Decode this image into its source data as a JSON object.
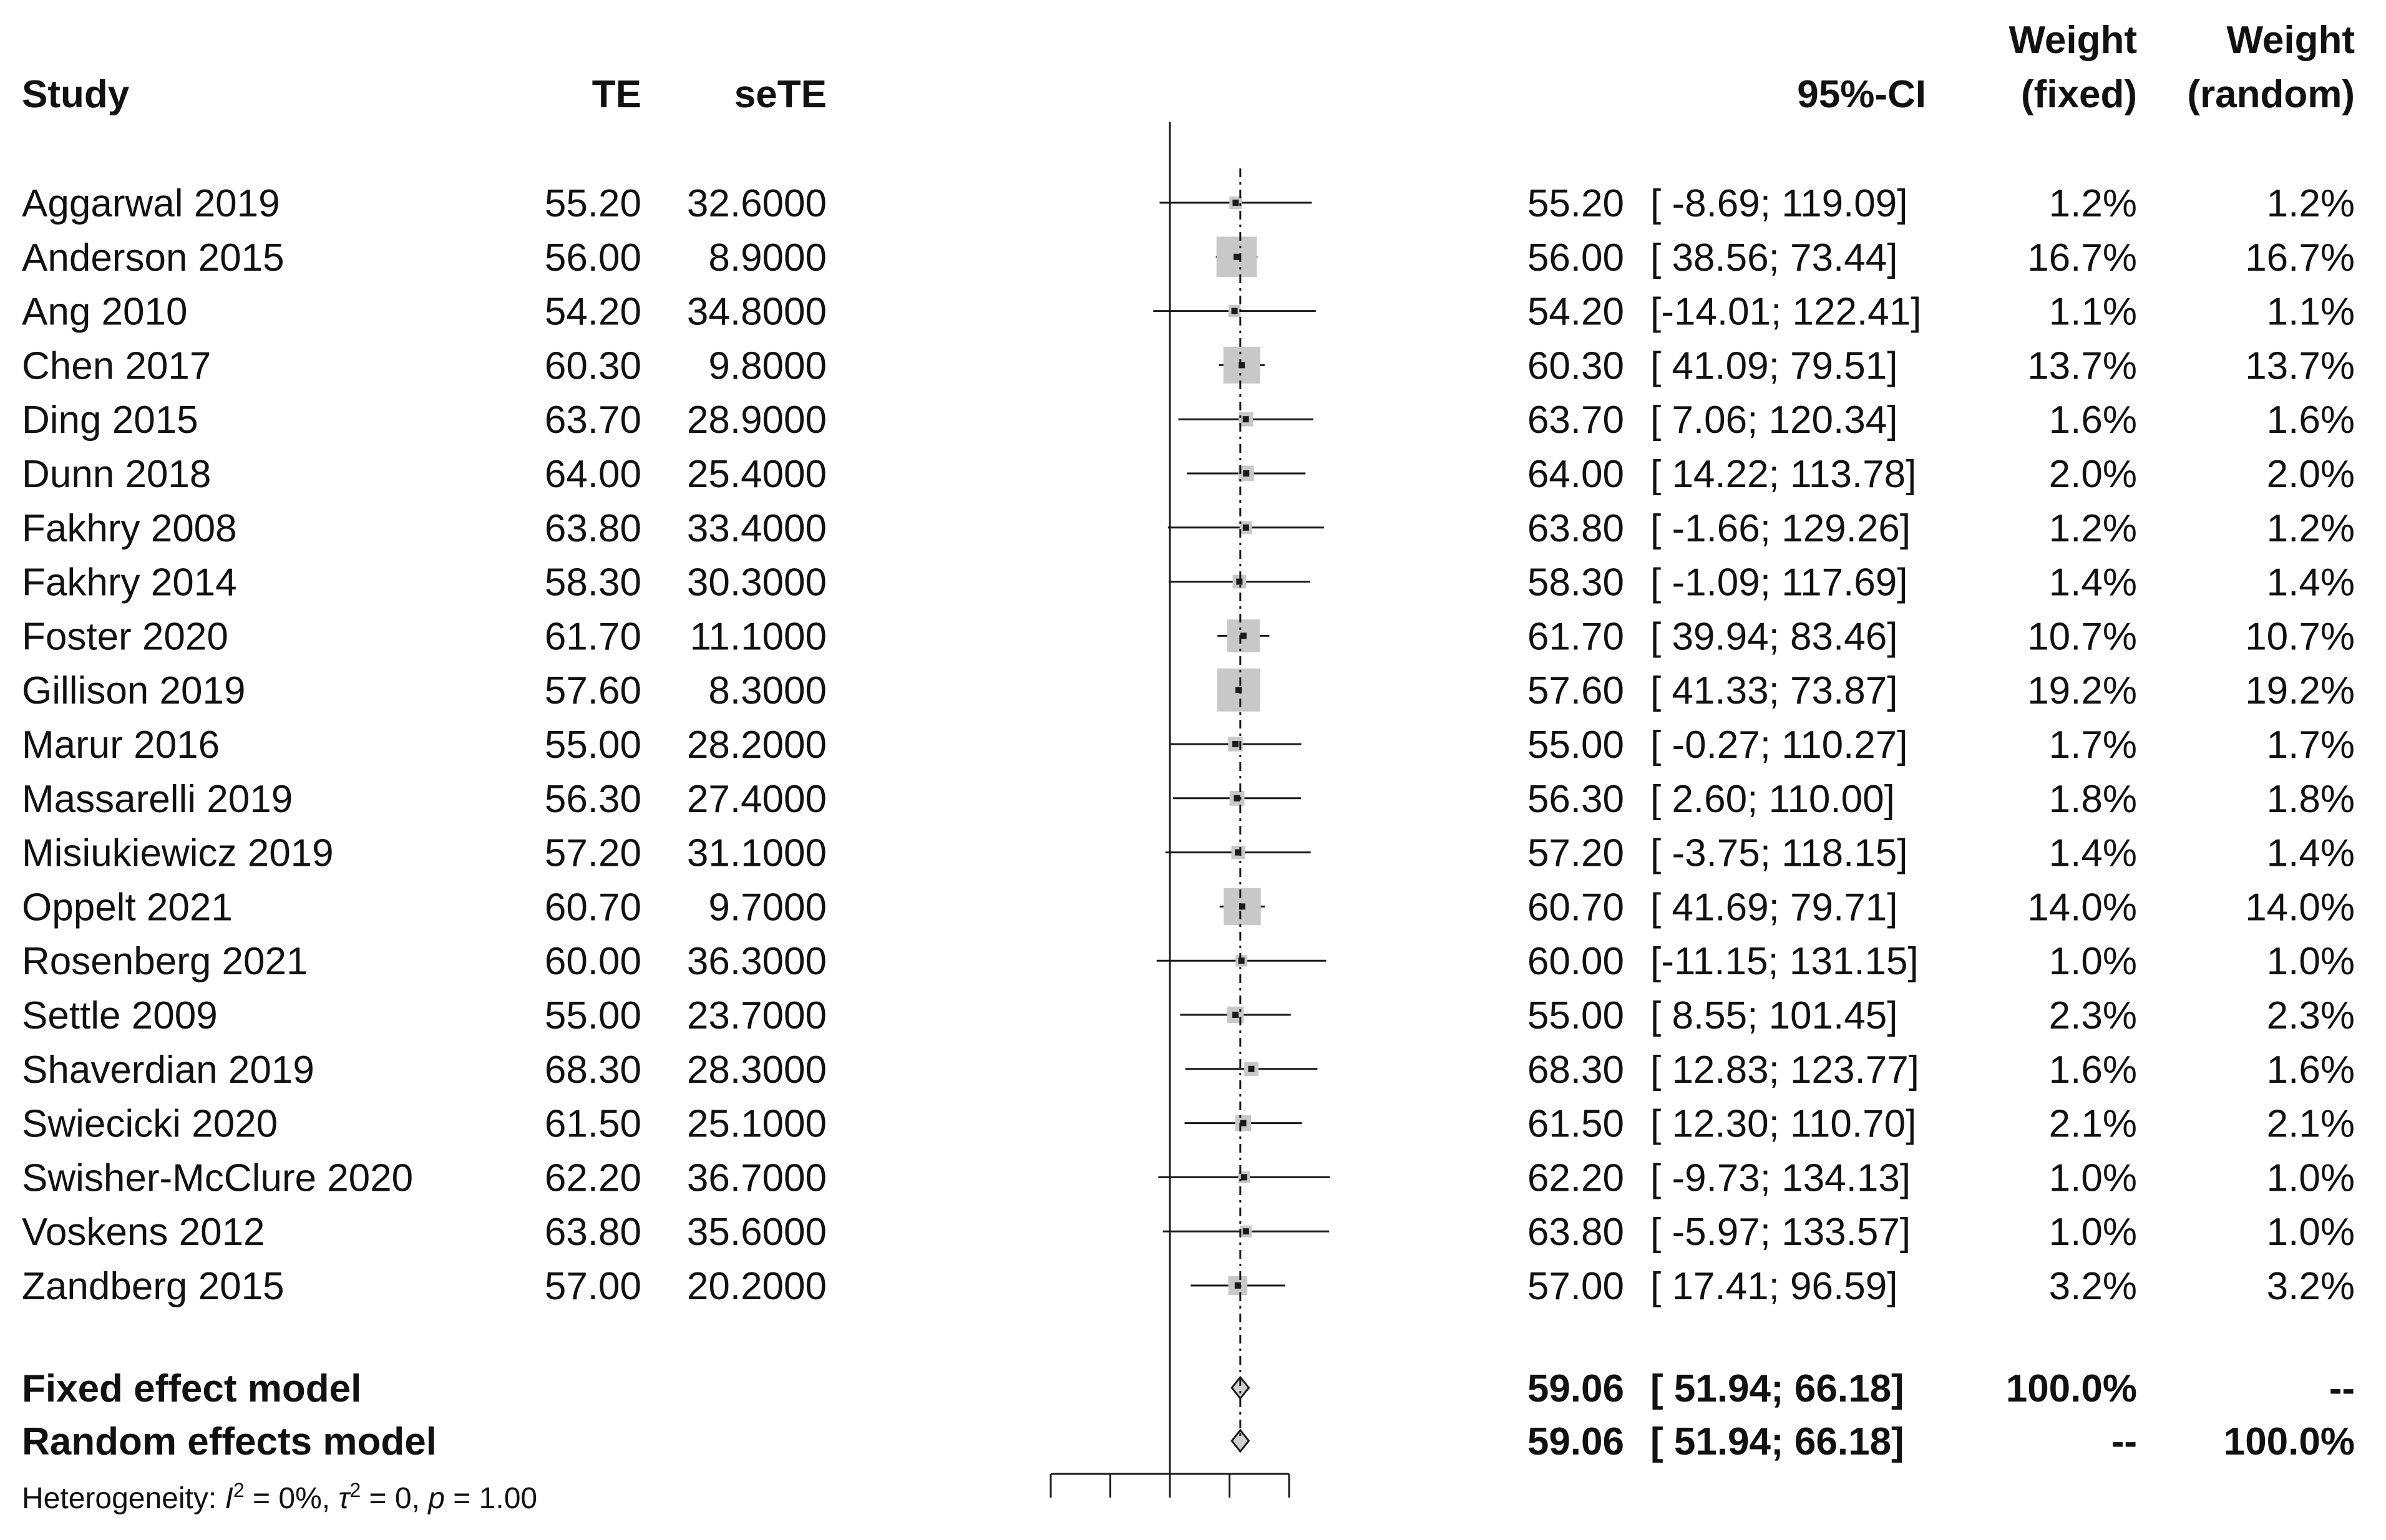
{
  "chart_data": {
    "type": "forest",
    "headers": {
      "study": "Study",
      "te": "TE",
      "sete": "seTE",
      "ci": "95%-CI",
      "weight_fixed": [
        "Weight",
        "(fixed)"
      ],
      "weight_random": [
        "Weight",
        "(random)"
      ]
    },
    "null_value": 0,
    "axis": {
      "xlim": [
        -100,
        100
      ],
      "ticks": [
        -100,
        -50,
        0,
        50,
        100
      ],
      "tick_labels_shown": false
    },
    "studies": [
      {
        "study": "Aggarwal 2019",
        "te": "55.20",
        "sete": "32.6000",
        "est": "55.20",
        "ci": "[ -8.69; 119.09]",
        "lower": -8.69,
        "upper": 119.09,
        "w_fixed": "1.2%",
        "w_random": "1.2%",
        "weight": 1.2
      },
      {
        "study": "Anderson 2015",
        "te": "56.00",
        "sete": "8.9000",
        "est": "56.00",
        "ci": "[ 38.56; 73.44]",
        "lower": 38.56,
        "upper": 73.44,
        "w_fixed": "16.7%",
        "w_random": "16.7%",
        "weight": 16.7
      },
      {
        "study": "Ang 2010",
        "te": "54.20",
        "sete": "34.8000",
        "est": "54.20",
        "ci": "[-14.01; 122.41]",
        "lower": -14.01,
        "upper": 122.41,
        "w_fixed": "1.1%",
        "w_random": "1.1%",
        "weight": 1.1
      },
      {
        "study": "Chen 2017",
        "te": "60.30",
        "sete": "9.8000",
        "est": "60.30",
        "ci": "[ 41.09; 79.51]",
        "lower": 41.09,
        "upper": 79.51,
        "w_fixed": "13.7%",
        "w_random": "13.7%",
        "weight": 13.7
      },
      {
        "study": "Ding 2015",
        "te": "63.70",
        "sete": "28.9000",
        "est": "63.70",
        "ci": "[ 7.06; 120.34]",
        "lower": 7.06,
        "upper": 120.34,
        "w_fixed": "1.6%",
        "w_random": "1.6%",
        "weight": 1.6
      },
      {
        "study": "Dunn 2018",
        "te": "64.00",
        "sete": "25.4000",
        "est": "64.00",
        "ci": "[ 14.22; 113.78]",
        "lower": 14.22,
        "upper": 113.78,
        "w_fixed": "2.0%",
        "w_random": "2.0%",
        "weight": 2.0
      },
      {
        "study": "Fakhry 2008",
        "te": "63.80",
        "sete": "33.4000",
        "est": "63.80",
        "ci": "[ -1.66; 129.26]",
        "lower": -1.66,
        "upper": 129.26,
        "w_fixed": "1.2%",
        "w_random": "1.2%",
        "weight": 1.2
      },
      {
        "study": "Fakhry 2014",
        "te": "58.30",
        "sete": "30.3000",
        "est": "58.30",
        "ci": "[ -1.09; 117.69]",
        "lower": -1.09,
        "upper": 117.69,
        "w_fixed": "1.4%",
        "w_random": "1.4%",
        "weight": 1.4
      },
      {
        "study": "Foster 2020",
        "te": "61.70",
        "sete": "11.1000",
        "est": "61.70",
        "ci": "[ 39.94; 83.46]",
        "lower": 39.94,
        "upper": 83.46,
        "w_fixed": "10.7%",
        "w_random": "10.7%",
        "weight": 10.7
      },
      {
        "study": "Gillison 2019",
        "te": "57.60",
        "sete": "8.3000",
        "est": "57.60",
        "ci": "[ 41.33; 73.87]",
        "lower": 41.33,
        "upper": 73.87,
        "w_fixed": "19.2%",
        "w_random": "19.2%",
        "weight": 19.2
      },
      {
        "study": "Marur 2016",
        "te": "55.00",
        "sete": "28.2000",
        "est": "55.00",
        "ci": "[ -0.27; 110.27]",
        "lower": -0.27,
        "upper": 110.27,
        "w_fixed": "1.7%",
        "w_random": "1.7%",
        "weight": 1.7
      },
      {
        "study": "Massarelli 2019",
        "te": "56.30",
        "sete": "27.4000",
        "est": "56.30",
        "ci": "[ 2.60; 110.00]",
        "lower": 2.6,
        "upper": 110.0,
        "w_fixed": "1.8%",
        "w_random": "1.8%",
        "weight": 1.8
      },
      {
        "study": "Misiukiewicz 2019",
        "te": "57.20",
        "sete": "31.1000",
        "est": "57.20",
        "ci": "[ -3.75; 118.15]",
        "lower": -3.75,
        "upper": 118.15,
        "w_fixed": "1.4%",
        "w_random": "1.4%",
        "weight": 1.4
      },
      {
        "study": "Oppelt 2021",
        "te": "60.70",
        "sete": "9.7000",
        "est": "60.70",
        "ci": "[ 41.69; 79.71]",
        "lower": 41.69,
        "upper": 79.71,
        "w_fixed": "14.0%",
        "w_random": "14.0%",
        "weight": 14.0
      },
      {
        "study": "Rosenberg 2021",
        "te": "60.00",
        "sete": "36.3000",
        "est": "60.00",
        "ci": "[-11.15; 131.15]",
        "lower": -11.15,
        "upper": 131.15,
        "w_fixed": "1.0%",
        "w_random": "1.0%",
        "weight": 1.0
      },
      {
        "study": "Settle 2009",
        "te": "55.00",
        "sete": "23.7000",
        "est": "55.00",
        "ci": "[ 8.55; 101.45]",
        "lower": 8.55,
        "upper": 101.45,
        "w_fixed": "2.3%",
        "w_random": "2.3%",
        "weight": 2.3
      },
      {
        "study": "Shaverdian 2019",
        "te": "68.30",
        "sete": "28.3000",
        "est": "68.30",
        "ci": "[ 12.83; 123.77]",
        "lower": 12.83,
        "upper": 123.77,
        "w_fixed": "1.6%",
        "w_random": "1.6%",
        "weight": 1.6
      },
      {
        "study": "Swiecicki 2020",
        "te": "61.50",
        "sete": "25.1000",
        "est": "61.50",
        "ci": "[ 12.30; 110.70]",
        "lower": 12.3,
        "upper": 110.7,
        "w_fixed": "2.1%",
        "w_random": "2.1%",
        "weight": 2.1
      },
      {
        "study": "Swisher-McClure 2020",
        "te": "62.20",
        "sete": "36.7000",
        "est": "62.20",
        "ci": "[ -9.73; 134.13]",
        "lower": -9.73,
        "upper": 134.13,
        "w_fixed": "1.0%",
        "w_random": "1.0%",
        "weight": 1.0
      },
      {
        "study": "Voskens 2012",
        "te": "63.80",
        "sete": "35.6000",
        "est": "63.80",
        "ci": "[ -5.97; 133.57]",
        "lower": -5.97,
        "upper": 133.57,
        "w_fixed": "1.0%",
        "w_random": "1.0%",
        "weight": 1.0
      },
      {
        "study": "Zandberg 2015",
        "te": "57.00",
        "sete": "20.2000",
        "est": "57.00",
        "ci": "[ 17.41; 96.59]",
        "lower": 17.41,
        "upper": 96.59,
        "w_fixed": "3.2%",
        "w_random": "3.2%",
        "weight": 3.2
      }
    ],
    "pooled": [
      {
        "label": "Fixed effect model",
        "est": "59.06",
        "ci": "[ 51.94; 66.18]",
        "lower": 51.94,
        "upper": 66.18,
        "estimate": 59.06,
        "w_fixed": "100.0%",
        "w_random": "--"
      },
      {
        "label": "Random effects model",
        "est": "59.06",
        "ci": "[ 51.94; 66.18]",
        "lower": 51.94,
        "upper": 66.18,
        "estimate": 59.06,
        "w_fixed": "--",
        "w_random": "100.0%"
      }
    ],
    "heterogeneity": {
      "prefix": "Heterogeneity: ",
      "i2_symbol": "I",
      "i2_value": " = 0%, ",
      "tau2_symbol": "τ",
      "tau2_value": " = 0, ",
      "p_symbol": "p",
      "p_value": " = 1.00"
    },
    "colors": {
      "square": "#c8c8c8",
      "line": "#1a1a1a",
      "diamond_fill": "#d0d0d0",
      "text": "#111111"
    }
  }
}
